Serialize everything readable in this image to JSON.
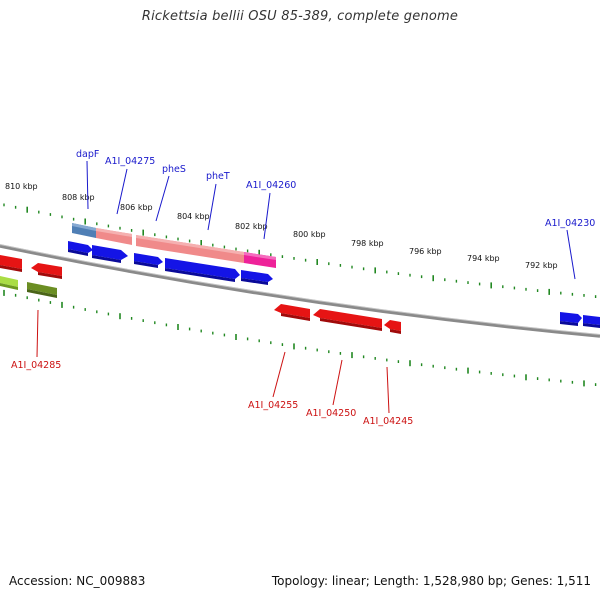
{
  "title": "Rickettsia bellii OSU 85-389, complete genome",
  "accession_text": "Accession: NC_009883",
  "summary_text": "Topology: linear; Length: 1,528,980 bp; Genes: 1,511",
  "colors": {
    "tick": "#228822",
    "backbone": "#888888",
    "forward_gene": "#1414e6",
    "reverse_gene": "#e61414",
    "label_top": "#1a1acc",
    "label_bottom": "#cc1111",
    "rna_blue": "#4f7fb5",
    "rna_pink": "#f08a8a",
    "rna_magenta": "#ee2299",
    "olive": "#6b8e23",
    "lime": "#aadd44"
  },
  "kbp_labels": [
    "810 kbp",
    "808 kbp",
    "806 kbp",
    "804 kbp",
    "802 kbp",
    "800 kbp",
    "798 kbp",
    "796 kbp",
    "794 kbp",
    "792 kbp"
  ],
  "genes_top": [
    "dapF",
    "A1I_04275",
    "pheS",
    "pheT",
    "A1I_04260",
    "A1I_04230"
  ],
  "genes_bottom": [
    "A1I_04285",
    "A1I_04255",
    "A1I_04250",
    "A1I_04245"
  ]
}
